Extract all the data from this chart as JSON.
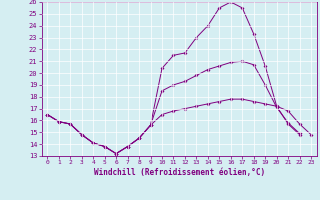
{
  "xlabel": "Windchill (Refroidissement éolien,°C)",
  "xlim": [
    -0.5,
    23.5
  ],
  "ylim": [
    13,
    26
  ],
  "yticks": [
    13,
    14,
    15,
    16,
    17,
    18,
    19,
    20,
    21,
    22,
    23,
    24,
    25,
    26
  ],
  "xticks": [
    0,
    1,
    2,
    3,
    4,
    5,
    6,
    7,
    8,
    9,
    10,
    11,
    12,
    13,
    14,
    15,
    16,
    17,
    18,
    19,
    20,
    21,
    22,
    23
  ],
  "line_color": "#800080",
  "bg_color": "#d5eef2",
  "grid_color": "#ffffff",
  "line1_x": [
    0,
    1,
    2,
    3,
    4,
    5,
    6,
    7,
    8,
    9,
    10,
    11,
    12,
    13,
    14,
    15,
    16,
    17,
    18,
    19,
    20,
    21,
    22
  ],
  "line1_y": [
    16.5,
    15.9,
    15.7,
    14.8,
    14.1,
    13.8,
    13.2,
    13.8,
    14.5,
    15.6,
    20.4,
    21.5,
    21.7,
    23.0,
    24.0,
    25.5,
    26.0,
    25.5,
    23.3,
    20.6,
    17.2,
    15.7,
    14.8
  ],
  "line2_x": [
    0,
    1,
    2,
    3,
    4,
    5,
    6,
    7,
    8,
    9,
    10,
    11,
    12,
    13,
    14,
    15,
    16,
    17,
    18,
    19,
    20,
    21,
    22,
    23
  ],
  "line2_y": [
    16.5,
    15.9,
    15.7,
    14.8,
    14.1,
    13.8,
    13.2,
    13.8,
    14.5,
    15.6,
    16.5,
    16.8,
    17.0,
    17.2,
    17.4,
    17.6,
    17.8,
    17.8,
    17.6,
    17.4,
    17.2,
    16.8,
    15.7,
    14.8
  ],
  "line3_x": [
    0,
    1,
    2,
    3,
    4,
    5,
    6,
    7,
    8,
    9,
    10,
    11,
    12,
    13,
    14,
    15,
    16,
    17,
    18,
    19,
    20,
    21,
    22
  ],
  "line3_y": [
    16.5,
    15.9,
    15.7,
    14.8,
    14.1,
    13.8,
    13.2,
    13.8,
    14.5,
    15.6,
    18.5,
    19.0,
    19.3,
    19.8,
    20.3,
    20.6,
    20.9,
    21.0,
    20.7,
    19.0,
    17.1,
    15.8,
    14.9
  ]
}
